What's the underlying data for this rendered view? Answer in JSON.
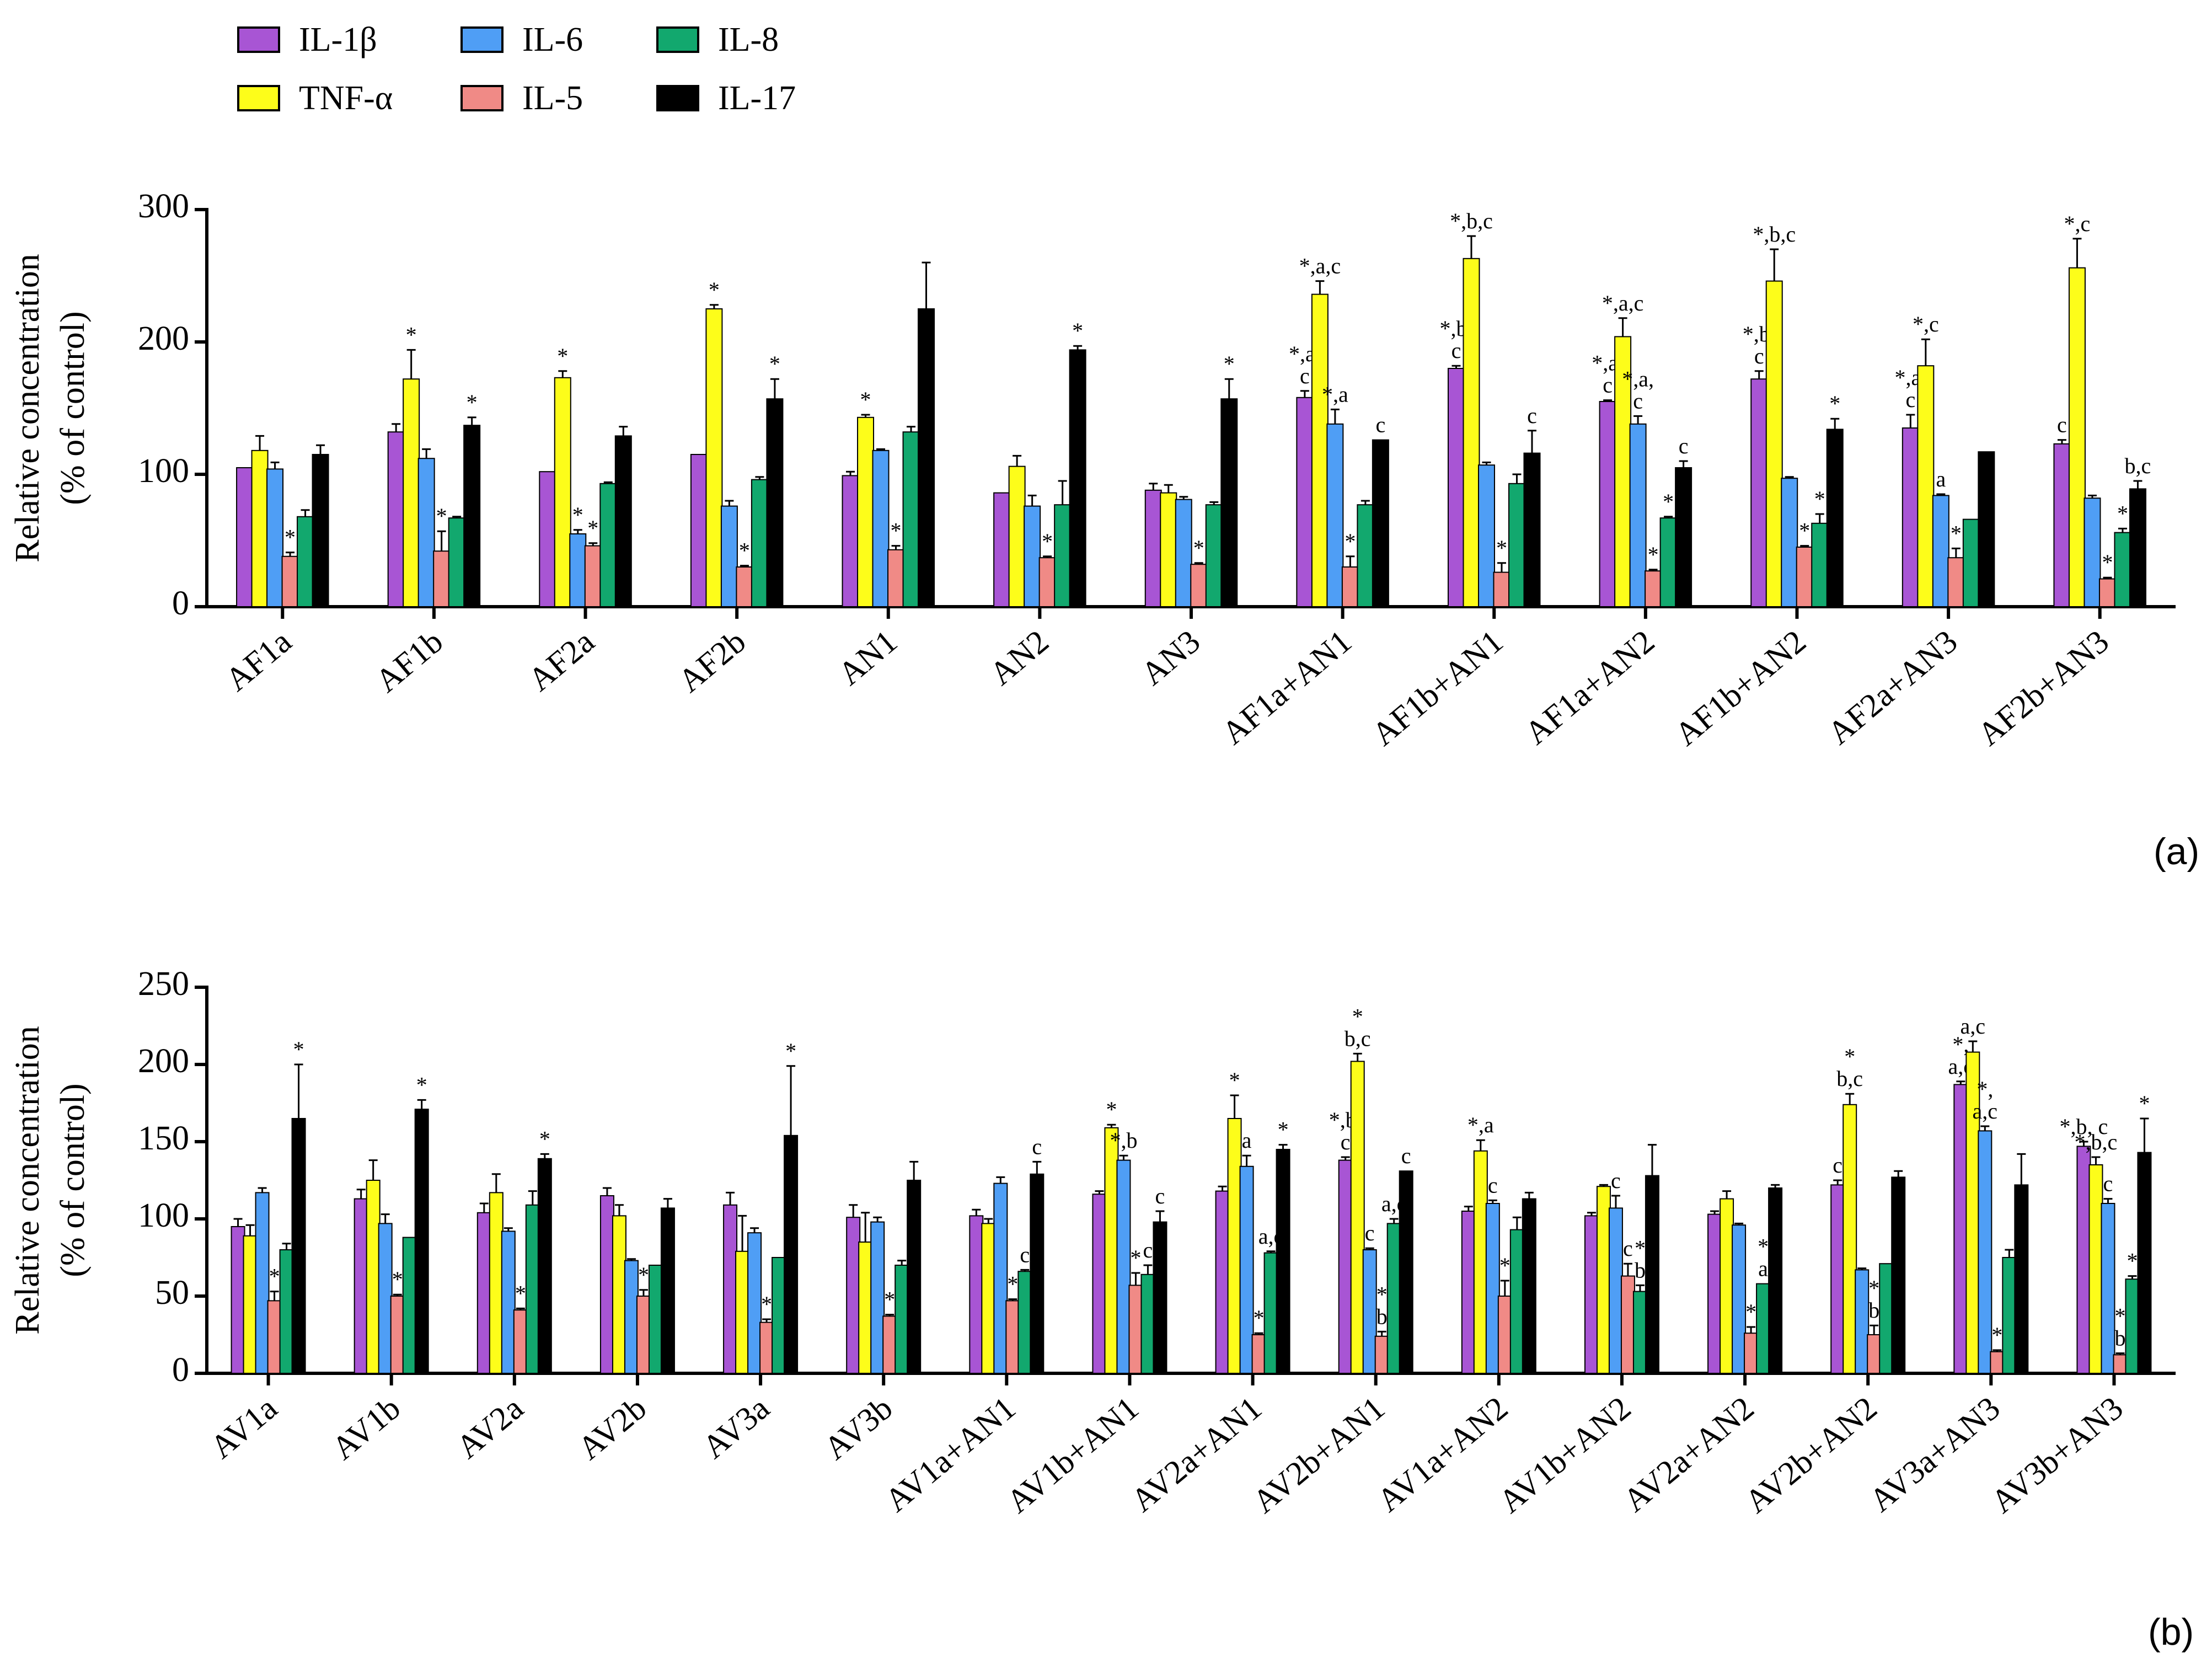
{
  "legend": {
    "items": [
      {
        "label": "IL-1β",
        "color": "#a855d4"
      },
      {
        "label": "IL-6",
        "color": "#4f9ef5"
      },
      {
        "label": "IL-8",
        "color": "#12a86e"
      },
      {
        "label": "TNF-α",
        "color": "#fdfd1a"
      },
      {
        "label": "IL-5",
        "color": "#f08a86"
      },
      {
        "label": "IL-17",
        "color": "#000000"
      }
    ]
  },
  "panels": {
    "a": {
      "letter": "(a)"
    },
    "b": {
      "letter": "(b)"
    }
  },
  "chart_data": [
    {
      "type": "bar",
      "panel": "(a)",
      "ylabel": "Relative concentration (% of control)",
      "ylabel_lines": [
        "Relative concentration",
        "(% of control)"
      ],
      "ylim": [
        0,
        300
      ],
      "yticks": [
        0,
        100,
        200,
        300
      ],
      "categories": [
        "AF1a",
        "AF1b",
        "AF2a",
        "AF2b",
        "AN1",
        "AN2",
        "AN3",
        "AF1a+AN1",
        "AF1b+AN1",
        "AF1a+AN2",
        "AF1b+AN2",
        "AF2a+AN3",
        "AF2b+AN3"
      ],
      "series": [
        {
          "name": "IL-1β",
          "color": "#a855d4",
          "values": [
            105,
            132,
            102,
            115,
            99,
            86,
            88,
            158,
            180,
            155,
            172,
            135,
            123
          ],
          "errors": [
            0,
            6,
            0,
            0,
            3,
            0,
            5,
            5,
            2,
            1,
            6,
            10,
            3
          ],
          "labels": [
            "",
            "",
            "",
            "",
            "",
            "",
            "",
            "*,a,\nc",
            "*,b,\nc",
            "*,a,\nc",
            "*,b,\nc",
            "*,a,\nc",
            "c"
          ]
        },
        {
          "name": "TNF-α",
          "color": "#fdfd1a",
          "values": [
            118,
            172,
            173,
            225,
            143,
            106,
            86,
            236,
            263,
            204,
            246,
            182,
            256
          ],
          "errors": [
            11,
            22,
            5,
            3,
            2,
            8,
            6,
            10,
            17,
            14,
            24,
            20,
            22
          ],
          "labels": [
            "",
            "*",
            "*",
            "*",
            "*",
            "",
            "",
            "*,a,c",
            "*,b,c",
            "*,a,c",
            "*,b,c",
            "*,c",
            "*,c"
          ]
        },
        {
          "name": "IL-6",
          "color": "#4f9ef5",
          "values": [
            104,
            112,
            55,
            76,
            118,
            76,
            81,
            138,
            107,
            138,
            97,
            84,
            82
          ],
          "errors": [
            5,
            7,
            3,
            4,
            1,
            8,
            2,
            11,
            2,
            6,
            1,
            1,
            2
          ],
          "labels": [
            "",
            "",
            "*",
            "",
            "",
            "",
            "",
            "*,a",
            "",
            "*,a,\nc",
            "",
            "a",
            ""
          ]
        },
        {
          "name": "IL-5",
          "color": "#f08a86",
          "values": [
            38,
            42,
            46,
            30,
            43,
            37,
            32,
            30,
            26,
            27,
            45,
            37,
            21
          ],
          "errors": [
            3,
            15,
            2,
            1,
            3,
            1,
            1,
            8,
            7,
            1,
            1,
            7,
            1
          ],
          "labels": [
            "*",
            "*",
            "*",
            "*",
            "*",
            "*",
            "*",
            "*",
            "*",
            "*",
            "*",
            "*",
            "*"
          ]
        },
        {
          "name": "IL-8",
          "color": "#12a86e",
          "values": [
            68,
            67,
            93,
            96,
            132,
            77,
            77,
            77,
            93,
            67,
            63,
            66,
            56
          ],
          "errors": [
            5,
            1,
            1,
            2,
            4,
            18,
            2,
            3,
            7,
            1,
            7,
            0,
            3
          ],
          "labels": [
            "",
            "",
            "",
            "",
            "",
            "",
            "",
            "",
            "",
            "*",
            "*",
            "",
            "*"
          ]
        },
        {
          "name": "IL-17",
          "color": "#000000",
          "values": [
            115,
            137,
            129,
            157,
            225,
            194,
            157,
            126,
            116,
            105,
            134,
            117,
            89
          ],
          "errors": [
            7,
            6,
            7,
            15,
            35,
            3,
            15,
            0,
            17,
            5,
            8,
            0,
            6
          ],
          "labels": [
            "",
            "*",
            "",
            "*",
            "",
            "*",
            "*",
            "c",
            "c",
            "c",
            "*",
            "",
            "b,c"
          ]
        }
      ]
    },
    {
      "type": "bar",
      "panel": "(b)",
      "ylabel": "Relative concentration (% of control)",
      "ylabel_lines": [
        "Relative concentration",
        "(% of control)"
      ],
      "ylim": [
        0,
        250
      ],
      "yticks": [
        0,
        50,
        100,
        150,
        200,
        250
      ],
      "categories": [
        "AV1a",
        "AV1b",
        "AV2a",
        "AV2b",
        "AV3a",
        "AV3b",
        "AV1a+AN1",
        "AV1b+AN1",
        "AV2a+AN1",
        "AV2b+AN1",
        "AV1a+AN2",
        "AV1b+AN2",
        "AV2a+AN2",
        "AV2b+AN2",
        "AV3a+AN3",
        "AV3b+AN3"
      ],
      "series": [
        {
          "name": "IL-1β",
          "color": "#a855d4",
          "values": [
            95,
            113,
            104,
            115,
            109,
            101,
            102,
            116,
            118,
            138,
            105,
            102,
            103,
            122,
            187,
            147
          ],
          "errors": [
            5,
            6,
            6,
            5,
            8,
            8,
            4,
            2,
            3,
            2,
            3,
            2,
            2,
            3,
            2,
            3
          ],
          "labels": [
            "",
            "",
            "",
            "",
            "",
            "",
            "",
            "",
            "",
            "*,b,\nc",
            "",
            "",
            "",
            "c",
            "*,\na,c",
            "*,b, c"
          ]
        },
        {
          "name": "TNF-α",
          "color": "#fdfd1a",
          "values": [
            89,
            125,
            117,
            102,
            79,
            85,
            97,
            159,
            165,
            202,
            144,
            121,
            113,
            174,
            208,
            135
          ],
          "errors": [
            7,
            13,
            12,
            7,
            23,
            19,
            3,
            2,
            15,
            5,
            7,
            1,
            5,
            7,
            7,
            5
          ],
          "labels": [
            "",
            "",
            "",
            "",
            "",
            "",
            "",
            "*",
            "*",
            "*\nb,c",
            "*,a",
            "",
            "",
            "*\nb,c",
            "a,c",
            "*,b,c"
          ]
        },
        {
          "name": "IL-6",
          "color": "#4f9ef5",
          "values": [
            117,
            97,
            92,
            73,
            91,
            98,
            123,
            138,
            134,
            80,
            110,
            107,
            96,
            67,
            157,
            110
          ],
          "errors": [
            3,
            6,
            2,
            1,
            3,
            3,
            4,
            3,
            7,
            1,
            2,
            8,
            1,
            1,
            3,
            3
          ],
          "labels": [
            "",
            "",
            "",
            "",
            "",
            "",
            "",
            "*,b",
            "a",
            "c",
            "c",
            "c",
            "",
            "",
            "*,\na,c",
            "c"
          ]
        },
        {
          "name": "IL-5",
          "color": "#f08a86",
          "values": [
            47,
            50,
            41,
            50,
            33,
            37,
            47,
            57,
            25,
            24,
            50,
            63,
            26,
            25,
            14,
            12
          ],
          "errors": [
            6,
            1,
            1,
            4,
            2,
            1,
            1,
            8,
            1,
            3,
            10,
            8,
            4,
            6,
            1,
            1
          ],
          "labels": [
            "*",
            "*",
            "*",
            "*",
            "*",
            "*",
            "*",
            "*",
            "*",
            "*\nb",
            "*",
            "c",
            "*",
            "*\nb",
            "*",
            "*\nb"
          ]
        },
        {
          "name": "IL-8",
          "color": "#12a86e",
          "values": [
            80,
            88,
            109,
            70,
            75,
            70,
            66,
            64,
            78,
            97,
            93,
            53,
            58,
            71,
            75,
            61
          ],
          "errors": [
            4,
            0,
            9,
            0,
            0,
            3,
            1,
            6,
            1,
            3,
            8,
            4,
            0,
            0,
            5,
            2
          ],
          "labels": [
            "",
            "",
            "",
            "",
            "",
            "",
            "c",
            "c",
            "a,c",
            "a,c",
            "",
            "*\nb",
            "*\na",
            "",
            "",
            "*"
          ]
        },
        {
          "name": "IL-17",
          "color": "#000000",
          "values": [
            165,
            171,
            139,
            107,
            154,
            125,
            129,
            98,
            145,
            131,
            113,
            128,
            120,
            127,
            122,
            143
          ],
          "errors": [
            35,
            6,
            3,
            6,
            45,
            12,
            8,
            7,
            3,
            0,
            4,
            20,
            2,
            4,
            20,
            22
          ],
          "labels": [
            "*",
            "*",
            "*",
            "",
            "*",
            "",
            "c",
            "c",
            "*",
            "c",
            "",
            "",
            "",
            "",
            "",
            "*"
          ]
        }
      ]
    }
  ]
}
